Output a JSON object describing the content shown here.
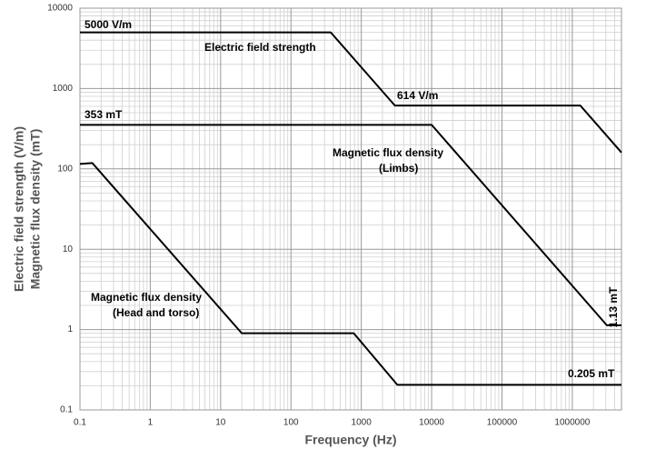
{
  "chart_data": {
    "type": "line",
    "xlabel": "Frequency (Hz)",
    "ylabel": [
      "Electric field strength (V/m)",
      "Magnetic flux density (mT)"
    ],
    "log_x": true,
    "log_y": true,
    "grid": true,
    "minor_grid": true,
    "xlim": [
      0.1,
      5000000
    ],
    "ylim": [
      0.1,
      10000
    ],
    "xticks": [
      0.1,
      1,
      10,
      100,
      1000,
      10000,
      100000,
      1000000
    ],
    "yticks": [
      0.1,
      1,
      10,
      100,
      1000,
      10000
    ],
    "series": [
      {
        "name": "Electric field strength",
        "color": "#000000",
        "x": [
          0.1,
          368,
          3000,
          1300000,
          5000000
        ],
        "values": [
          5000,
          5000,
          614,
          614,
          160
        ]
      },
      {
        "name": "Magnetic flux density (Limbs)",
        "color": "#000000",
        "x": [
          0.1,
          10000,
          3100000,
          5000000
        ],
        "values": [
          353,
          353,
          1.13,
          1.13
        ]
      },
      {
        "name": "Magnetic flux density (Head and torso)",
        "color": "#000000",
        "x": [
          0.1,
          0.15,
          20,
          780,
          3250,
          5000000
        ],
        "values": [
          115,
          118,
          0.9,
          0.9,
          0.205,
          0.205
        ]
      }
    ],
    "annotations": [
      "5000 V/m",
      "Electric field strength",
      "614 V/m",
      "353 mT",
      "Magnetic flux  density",
      "(Limbs)",
      "Magnetic flux  density",
      "(Head and torso)",
      "0.205 mT",
      "1.13 mT"
    ]
  }
}
